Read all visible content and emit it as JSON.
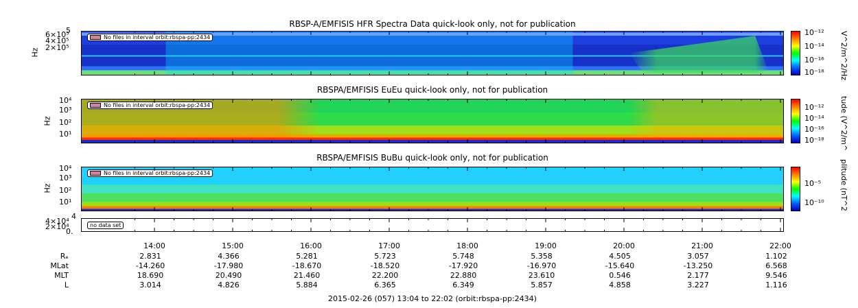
{
  "panels": [
    {
      "title": "RBSP-A/EMFISIS  HFR Spectra Data quick-look only, not for publication",
      "ylabel": "Hz",
      "yticks": [
        "5",
        "6×10⁵",
        "4×10⁵",
        "2×10⁵"
      ],
      "tag": "No files in interval orbit:rbspa-pp:2434",
      "cbar_label": "V^2/m^2/Hz",
      "cbar_ticks": [
        "10⁻¹²",
        "10⁻¹⁴",
        "10⁻¹⁶",
        "10⁻¹⁸"
      ]
    },
    {
      "title": "RBSPA/EMFISIS  EuEu quick-look only, not for publication",
      "ylabel": "Hz",
      "yticks": [
        "10⁴",
        "10³",
        "10²",
        "10¹"
      ],
      "tag": "No files in interval orbit:rbspa-pp:2434",
      "cbar_label": "tude (V^2/m^",
      "cbar_ticks": [
        "10⁻¹²",
        "10⁻¹⁴",
        "10⁻¹⁶",
        "10⁻¹⁸"
      ]
    },
    {
      "title": "RBSPA/EMFISIS  BuBu quick-look only, not for publication",
      "ylabel": "Hz",
      "yticks": [
        "10⁴",
        "10³",
        "10²",
        "10¹"
      ],
      "tag": "No files in interval orbit:rbspa-pp:2434",
      "cbar_label": "plitude (nT^2",
      "cbar_ticks": [
        "10⁻⁵",
        "10⁻¹⁰"
      ]
    },
    {
      "title": "",
      "ylabel": "",
      "yticks": [
        "4",
        "4×10⁴",
        "2×10⁴",
        "0."
      ],
      "tag": "no data set"
    }
  ],
  "chart_data": {
    "type": "heatmap",
    "x_label_times": [
      "14:00",
      "15:00",
      "16:00",
      "17:00",
      "18:00",
      "19:00",
      "20:00",
      "21:00",
      "22:00"
    ],
    "ephemeris": [
      {
        "name": "Rₑ",
        "values": [
          "2.831",
          "4.366",
          "5.281",
          "5.723",
          "5.748",
          "5.358",
          "4.505",
          "3.057",
          "1.102"
        ]
      },
      {
        "name": "MLat",
        "values": [
          "-14.260",
          "-17.980",
          "-18.670",
          "-18.520",
          "-17.920",
          "-16.970",
          "-15.640",
          "-13.250",
          "6.568"
        ]
      },
      {
        "name": "MLT",
        "values": [
          "18.690",
          "20.490",
          "21.460",
          "22.200",
          "22.880",
          "23.610",
          "0.546",
          "2.177",
          "9.546"
        ]
      },
      {
        "name": "L",
        "values": [
          "3.014",
          "4.826",
          "5.884",
          "6.365",
          "6.349",
          "5.857",
          "4.858",
          "3.227",
          "1.116"
        ]
      }
    ],
    "time_range": "2015-02-26 (057) 13:04 to 22:02 (orbit:rbspa-pp:2434)"
  }
}
